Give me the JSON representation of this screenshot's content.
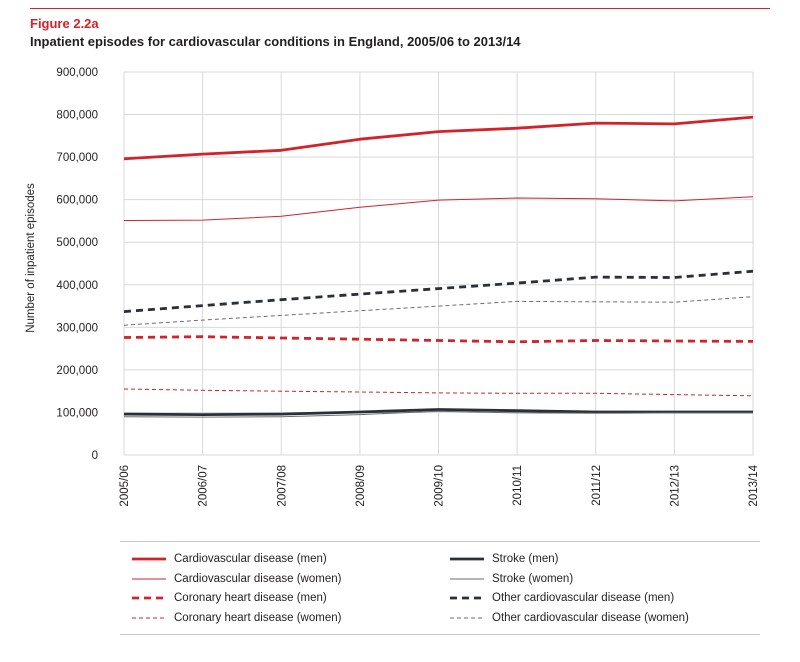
{
  "figure": {
    "label": "Figure 2.2a",
    "title": "Inpatient episodes for cardiovascular conditions in England, 2005/06 to 2013/14"
  },
  "colors": {
    "red": "#d2232a",
    "dark": "#2b2f38",
    "grey": "#6d6e71",
    "grid": "#d9d9d9"
  },
  "chart_data": {
    "type": "line",
    "title": "Inpatient episodes for cardiovascular conditions in England, 2005/06 to 2013/14",
    "xlabel": "",
    "ylabel": "Number of inpatient episodes",
    "ylim": [
      0,
      900000
    ],
    "yticks": [
      0,
      100000,
      200000,
      300000,
      400000,
      500000,
      600000,
      700000,
      800000,
      900000
    ],
    "ytick_labels": [
      "0",
      "100,000",
      "200,000",
      "300,000",
      "400,000",
      "500,000",
      "600,000",
      "700,000",
      "800,000",
      "900,000"
    ],
    "categories": [
      "2005/06",
      "2006/07",
      "2007/08",
      "2008/09",
      "2009/10",
      "2010/11",
      "2011/12",
      "2012/13",
      "2013/14"
    ],
    "grid": true,
    "legend_position": "bottom",
    "series": [
      {
        "name": "Cardiovascular disease (men)",
        "color": "#d2232a",
        "style": "solid",
        "weight": "thick",
        "values": [
          696000,
          707000,
          716000,
          742000,
          760000,
          768000,
          780000,
          778000,
          794000
        ]
      },
      {
        "name": "Cardiovascular disease (women)",
        "color": "#d2232a",
        "style": "solid",
        "weight": "thin",
        "values": [
          551000,
          552000,
          561000,
          582000,
          599000,
          604000,
          602000,
          597000,
          607000
        ]
      },
      {
        "name": "Coronary heart disease (men)",
        "color": "#d2232a",
        "style": "dashed",
        "weight": "thick",
        "values": [
          276000,
          278000,
          275000,
          272000,
          269000,
          266000,
          269000,
          268000,
          267000
        ]
      },
      {
        "name": "Coronary heart disease (women)",
        "color": "#d2232a",
        "style": "dashed",
        "weight": "thin",
        "values": [
          155000,
          152000,
          150000,
          148000,
          146000,
          145000,
          145000,
          142000,
          139000
        ]
      },
      {
        "name": "Stroke (men)",
        "color": "#2b2f38",
        "style": "solid",
        "weight": "thick",
        "values": [
          96000,
          95000,
          96000,
          101000,
          107000,
          104000,
          101000,
          101000,
          101000
        ]
      },
      {
        "name": "Stroke (women)",
        "color": "#6d6e71",
        "style": "solid",
        "weight": "thin",
        "values": [
          90000,
          89000,
          90000,
          95000,
          103000,
          99000,
          98000,
          99000,
          99000
        ]
      },
      {
        "name": "Other cardiovascular disease (men)",
        "color": "#2b2f38",
        "style": "dashed",
        "weight": "thick",
        "values": [
          337000,
          351000,
          365000,
          378000,
          391000,
          404000,
          418000,
          417000,
          432000
        ]
      },
      {
        "name": "Other cardiovascular disease (women)",
        "color": "#6d6e71",
        "style": "dashed",
        "weight": "thin",
        "values": [
          305000,
          317000,
          328000,
          339000,
          350000,
          361000,
          360000,
          359000,
          372000
        ]
      }
    ]
  }
}
